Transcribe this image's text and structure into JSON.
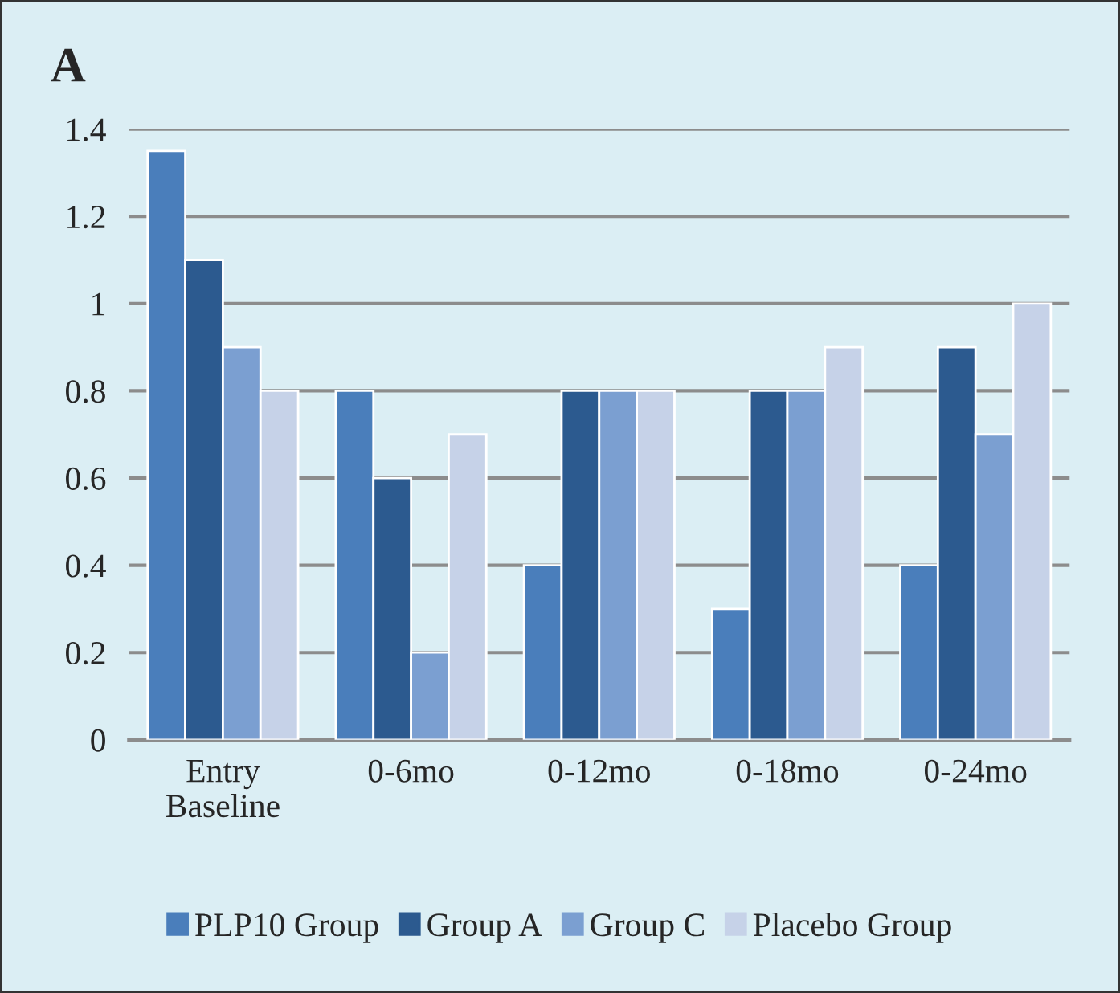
{
  "chart_data": {
    "type": "bar",
    "title": "A",
    "categories": [
      "Entry\nBaseline",
      "0-6mo",
      "0-12mo",
      "0-18mo",
      "0-24mo"
    ],
    "series": [
      {
        "name": "PLP10 Group",
        "color": "#4a7ebb",
        "values": [
          1.35,
          0.8,
          0.4,
          0.3,
          0.4
        ]
      },
      {
        "name": "Group A",
        "color": "#2c5a8f",
        "values": [
          1.1,
          0.6,
          0.8,
          0.8,
          0.9
        ]
      },
      {
        "name": "Group C",
        "color": "#7b9fd1",
        "values": [
          0.9,
          0.2,
          0.8,
          0.8,
          0.7
        ]
      },
      {
        "name": "Placebo Group",
        "color": "#c6d2e8",
        "values": [
          0.8,
          0.7,
          0.8,
          0.9,
          1.0
        ]
      }
    ],
    "ylim": [
      0,
      1.4
    ],
    "yticks": [
      0,
      0.2,
      0.4,
      0.6,
      0.8,
      1,
      1.2,
      1.4
    ],
    "grid": "y",
    "legend": "bottom"
  }
}
